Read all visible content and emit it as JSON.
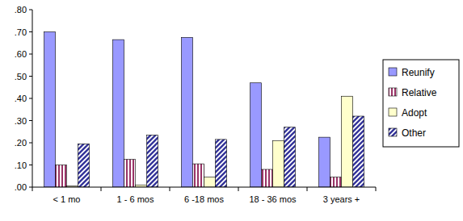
{
  "chart_data": {
    "type": "bar",
    "categories": [
      "< 1 mo",
      "1 - 6 mos",
      "6 -18 mos",
      "18 - 36 mos",
      "3 years +"
    ],
    "series": [
      {
        "name": "Reunify",
        "color": "#9999ff",
        "values": [
          0.7,
          0.665,
          0.675,
          0.47,
          0.225
        ]
      },
      {
        "name": "Relative",
        "color": "#993366",
        "values": [
          0.1,
          0.125,
          0.105,
          0.08,
          0.045
        ]
      },
      {
        "name": "Adopt",
        "color": "#ffffcc",
        "values": [
          0.005,
          0.01,
          0.045,
          0.21,
          0.41
        ]
      },
      {
        "name": "Other",
        "color": "#333399",
        "values": [
          0.195,
          0.235,
          0.215,
          0.27,
          0.32
        ]
      }
    ],
    "ylim": [
      0,
      0.8
    ],
    "yticks": [
      {
        "value": 0,
        "label": ".00"
      },
      {
        "value": 0.1,
        "label": ".10"
      },
      {
        "value": 0.2,
        "label": ".20"
      },
      {
        "value": 0.3,
        "label": ".30"
      },
      {
        "value": 0.4,
        "label": ".40"
      },
      {
        "value": 0.5,
        "label": ".50"
      },
      {
        "value": 0.6,
        "label": ".60"
      },
      {
        "value": 0.7,
        "label": ".70"
      },
      {
        "value": 0.8,
        "label": ".80"
      }
    ],
    "grid": false,
    "legend": "right"
  }
}
